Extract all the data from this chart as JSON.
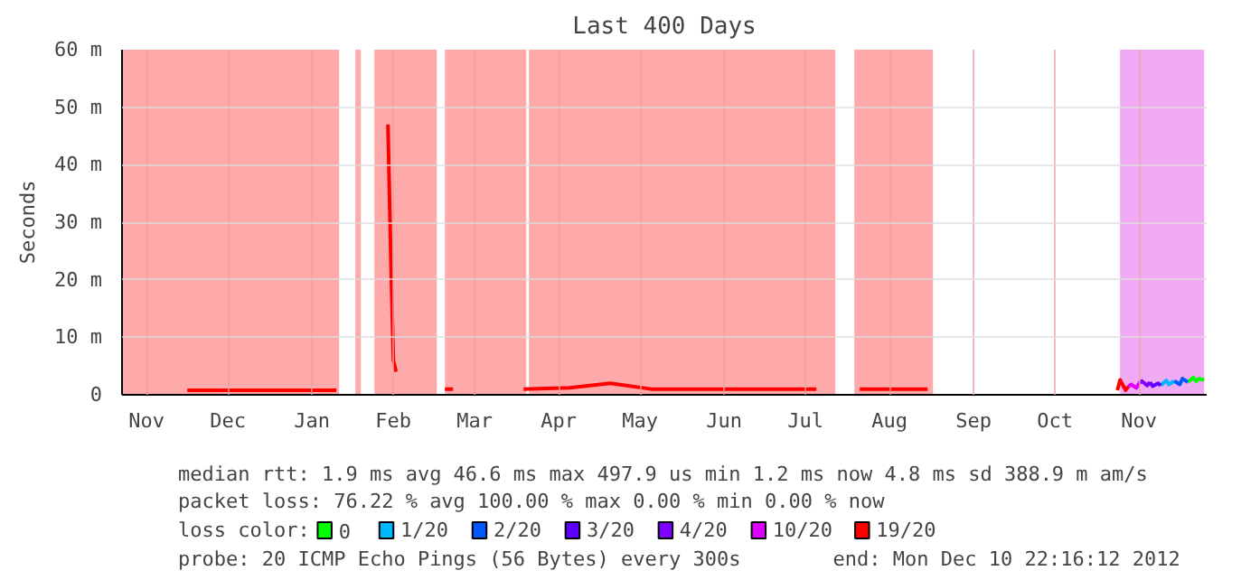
{
  "chart_data": {
    "type": "line",
    "title": "Last 400 Days",
    "ylabel": "Seconds",
    "xlim": [
      "2011-11-06T22:16",
      "2012-12-10T22:16"
    ],
    "xticks": [
      {
        "value": "2011-11-16",
        "label": "Nov"
      },
      {
        "value": "2011-12-16",
        "label": "Dec"
      },
      {
        "value": "2012-01-16",
        "label": "Jan"
      },
      {
        "value": "2012-02-15",
        "label": "Feb"
      },
      {
        "value": "2012-03-16",
        "label": "Mar"
      },
      {
        "value": "2012-04-16",
        "label": "Apr"
      },
      {
        "value": "2012-05-16",
        "label": "May"
      },
      {
        "value": "2012-06-16",
        "label": "Jun"
      },
      {
        "value": "2012-07-16",
        "label": "Jul"
      },
      {
        "value": "2012-08-16",
        "label": "Aug"
      },
      {
        "value": "2012-09-16",
        "label": "Sep"
      },
      {
        "value": "2012-10-16",
        "label": "Oct"
      },
      {
        "value": "2012-11-16",
        "label": "Nov"
      }
    ],
    "ylim": [
      0,
      60
    ],
    "yticks": [
      0,
      {
        "value": 10,
        "label": "10 m"
      },
      {
        "value": 20,
        "label": "20 m"
      },
      {
        "value": 30,
        "label": "30 m"
      },
      {
        "value": 40,
        "label": "40 m"
      },
      {
        "value": 50,
        "label": "50 m"
      },
      {
        "value": 60,
        "label": "60 m"
      }
    ],
    "grid": true,
    "legend": "bottom",
    "legend_title": "loss color:",
    "line_style": "solid",
    "series": [
      {
        "name": "0",
        "color": "#00ff00",
        "x": [
          "2012-12-04",
          "2012-12-06",
          "2012-12-07",
          "2012-12-08",
          "2012-12-10"
        ],
        "values": [
          2.2,
          3,
          2.4,
          2.8,
          2.6
        ]
      },
      {
        "name": "1/20",
        "color": "#00b8ff",
        "x": [
          "2012-11-24",
          "2012-11-26",
          "2012-11-27",
          "2012-11-29"
        ],
        "values": [
          1.6,
          2.5,
          1.8,
          2.4
        ]
      },
      {
        "name": "2/20",
        "color": "#0059ff",
        "x": [
          "2012-11-29",
          "2012-12-01",
          "2012-12-02",
          "2012-12-04"
        ],
        "values": [
          2.4,
          1.8,
          2.8,
          2.2
        ]
      },
      {
        "name": "3/20",
        "color": "#5e00ff",
        "x": [
          "2012-11-20",
          "2012-11-21",
          "2012-11-23",
          "2012-11-24"
        ],
        "values": [
          2.2,
          1.5,
          2,
          1.6
        ]
      },
      {
        "name": "4/20",
        "color": "#7e00ff",
        "x": [
          "2012-11-16",
          "2012-11-17",
          "2012-11-19",
          "2012-11-20"
        ],
        "values": [
          2,
          2.4,
          1.6,
          2.2
        ]
      },
      {
        "name": "10/20",
        "color": "#dd00ff",
        "x": [
          "2012-11-12",
          "2012-11-13",
          "2012-11-15",
          "2012-11-16"
        ],
        "values": [
          1.4,
          1.8,
          1.2,
          2
        ]
      },
      {
        "name": "19/20",
        "color": "#ff0000",
        "x": [
          "2011-12-01",
          "2011-12-15",
          "2012-01-01",
          "2012-01-15",
          "2012-01-25",
          "2012-01-28",
          "2012-02-13",
          "2012-02-14",
          "2012-02-15",
          "2012-02-16",
          "2012-02-20",
          "2012-03-05",
          "2012-03-08",
          "2012-03-20",
          "2012-04-03",
          "2012-04-20",
          "2012-05-05",
          "2012-05-20",
          "2012-06-10",
          "2012-07-01",
          "2012-07-20",
          "2012-07-28",
          "2012-08-05",
          "2012-08-30",
          "2012-09-05",
          "2012-11-08",
          "2012-11-09",
          "2012-11-11",
          "2012-11-12"
        ],
        "values": [
          0.8,
          0.8,
          0.8,
          0.8,
          0.8,
          null,
          47,
          25,
          6,
          4,
          null,
          1,
          1,
          null,
          1,
          1.2,
          2,
          1,
          1,
          1,
          1,
          null,
          1,
          1,
          null,
          0.8,
          2.6,
          0.8,
          1.4
        ]
      }
    ],
    "bands": [
      {
        "axis": "x",
        "from": "2011-11-06T22:16",
        "to": "2012-01-26",
        "color": "#ffaaaa"
      },
      {
        "axis": "x",
        "from": "2012-02-01",
        "to": "2012-02-03",
        "color": "#ffaaaa"
      },
      {
        "axis": "x",
        "from": "2012-02-08",
        "to": "2012-03-02",
        "color": "#ffaaaa"
      },
      {
        "axis": "x",
        "from": "2012-03-05",
        "to": "2012-04-04",
        "color": "#ffaaaa"
      },
      {
        "axis": "x",
        "from": "2012-04-05",
        "to": "2012-07-27",
        "color": "#ffaaaa"
      },
      {
        "axis": "x",
        "from": "2012-08-03",
        "to": "2012-09-01",
        "color": "#ffaaaa"
      },
      {
        "axis": "x",
        "from": "2012-11-09",
        "to": "2012-12-10",
        "color": "#f0aaf4"
      }
    ],
    "annotations": [
      "median rtt:  1.9 ms avg  46.6 ms max  497.9 us min  1.2 ms now  4.8 ms sd  388.9 m am/s",
      "packet loss: 76.22 % avg  100.00 % max  0.00 % min  0.00 % now",
      "probe:       20 ICMP Echo Pings (56 Bytes) every 300s",
      "end: Mon Dec 10 22:16:12 2012"
    ]
  }
}
